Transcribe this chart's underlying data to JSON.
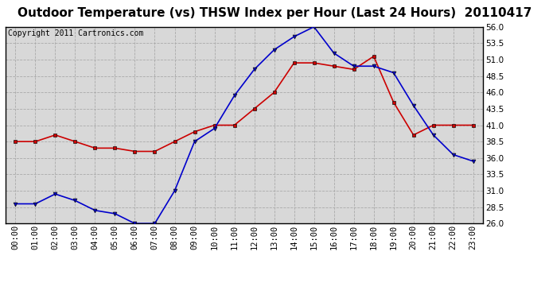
{
  "title": "Outdoor Temperature (vs) THSW Index per Hour (Last 24 Hours)  20110417",
  "copyright_text": "Copyright 2011 Cartronics.com",
  "hours": [
    0,
    1,
    2,
    3,
    4,
    5,
    6,
    7,
    8,
    9,
    10,
    11,
    12,
    13,
    14,
    15,
    16,
    17,
    18,
    19,
    20,
    21,
    22,
    23
  ],
  "hour_labels": [
    "00:00",
    "01:00",
    "02:00",
    "03:00",
    "04:00",
    "05:00",
    "06:00",
    "07:00",
    "08:00",
    "09:00",
    "10:00",
    "11:00",
    "12:00",
    "13:00",
    "14:00",
    "15:00",
    "16:00",
    "17:00",
    "18:00",
    "19:00",
    "20:00",
    "21:00",
    "22:00",
    "23:00"
  ],
  "outdoor_temp": [
    38.5,
    38.5,
    39.5,
    38.5,
    37.5,
    37.5,
    37.0,
    37.0,
    38.5,
    40.0,
    41.0,
    41.0,
    43.5,
    46.0,
    50.5,
    50.5,
    50.0,
    49.5,
    51.5,
    44.5,
    39.5,
    41.0,
    41.0,
    41.0
  ],
  "thsw_index": [
    29.0,
    29.0,
    30.5,
    29.5,
    28.0,
    27.5,
    26.0,
    26.0,
    31.0,
    38.5,
    40.5,
    45.5,
    49.5,
    52.5,
    54.5,
    56.0,
    52.0,
    50.0,
    50.0,
    49.0,
    44.0,
    39.5,
    36.5,
    35.5
  ],
  "temp_color": "#cc0000",
  "thsw_color": "#0000cc",
  "ylim": [
    26.0,
    56.0
  ],
  "yticks": [
    26.0,
    28.5,
    31.0,
    33.5,
    36.0,
    38.5,
    41.0,
    43.5,
    46.0,
    48.5,
    51.0,
    53.5,
    56.0
  ],
  "background_color": "#ffffff",
  "grid_color": "#aaaaaa",
  "plot_bg_color": "#d8d8d8",
  "title_fontsize": 11,
  "copyright_fontsize": 7,
  "tick_fontsize": 7.5
}
